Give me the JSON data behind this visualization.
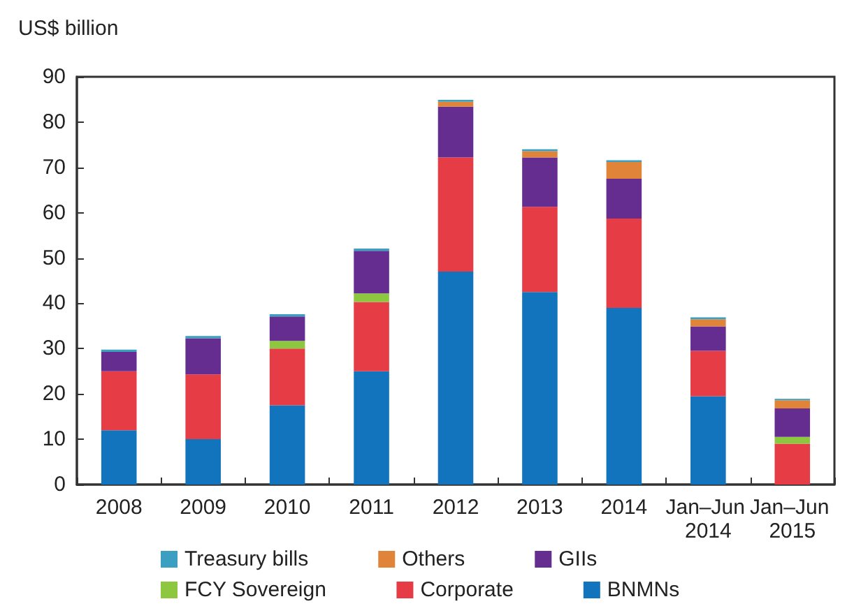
{
  "chart_data": {
    "type": "bar",
    "stacked": true,
    "ylabel": "US$ billion",
    "categories": [
      "2008",
      "2009",
      "2010",
      "2011",
      "2012",
      "2013",
      "2014",
      "Jan–Jun 2014",
      "Jan–Jun 2015"
    ],
    "series": [
      {
        "name": "BNMNs",
        "color": "#1174bc",
        "values": [
          12,
          10,
          17.5,
          25,
          47,
          42.5,
          39,
          19.5,
          0
        ]
      },
      {
        "name": "Corporate",
        "color": "#e63c45",
        "values": [
          13,
          14.3,
          12.5,
          15.3,
          25.2,
          18.8,
          19.7,
          10,
          9
        ]
      },
      {
        "name": "FCY Sovereign",
        "color": "#8dc63f",
        "values": [
          0,
          0,
          1.7,
          1.9,
          0,
          0,
          0,
          0,
          1.5
        ]
      },
      {
        "name": "GIIs",
        "color": "#662d91",
        "values": [
          4.3,
          8,
          5.4,
          9.4,
          11.2,
          10.9,
          8.8,
          5.4,
          6.3
        ]
      },
      {
        "name": "Others",
        "color": "#e0843a",
        "values": [
          0,
          0,
          0,
          0,
          1.1,
          1.4,
          3.7,
          1.6,
          1.8
        ]
      },
      {
        "name": "Treasury bills",
        "color": "#3a9fc0",
        "values": [
          0.5,
          0.5,
          0.5,
          0.5,
          0.4,
          0.4,
          0.4,
          0.4,
          0.3
        ]
      }
    ],
    "ylim": [
      0,
      90
    ],
    "yticks": [
      0,
      10,
      20,
      30,
      40,
      50,
      60,
      70,
      80,
      90
    ],
    "grid": false,
    "legend": "bottom"
  }
}
